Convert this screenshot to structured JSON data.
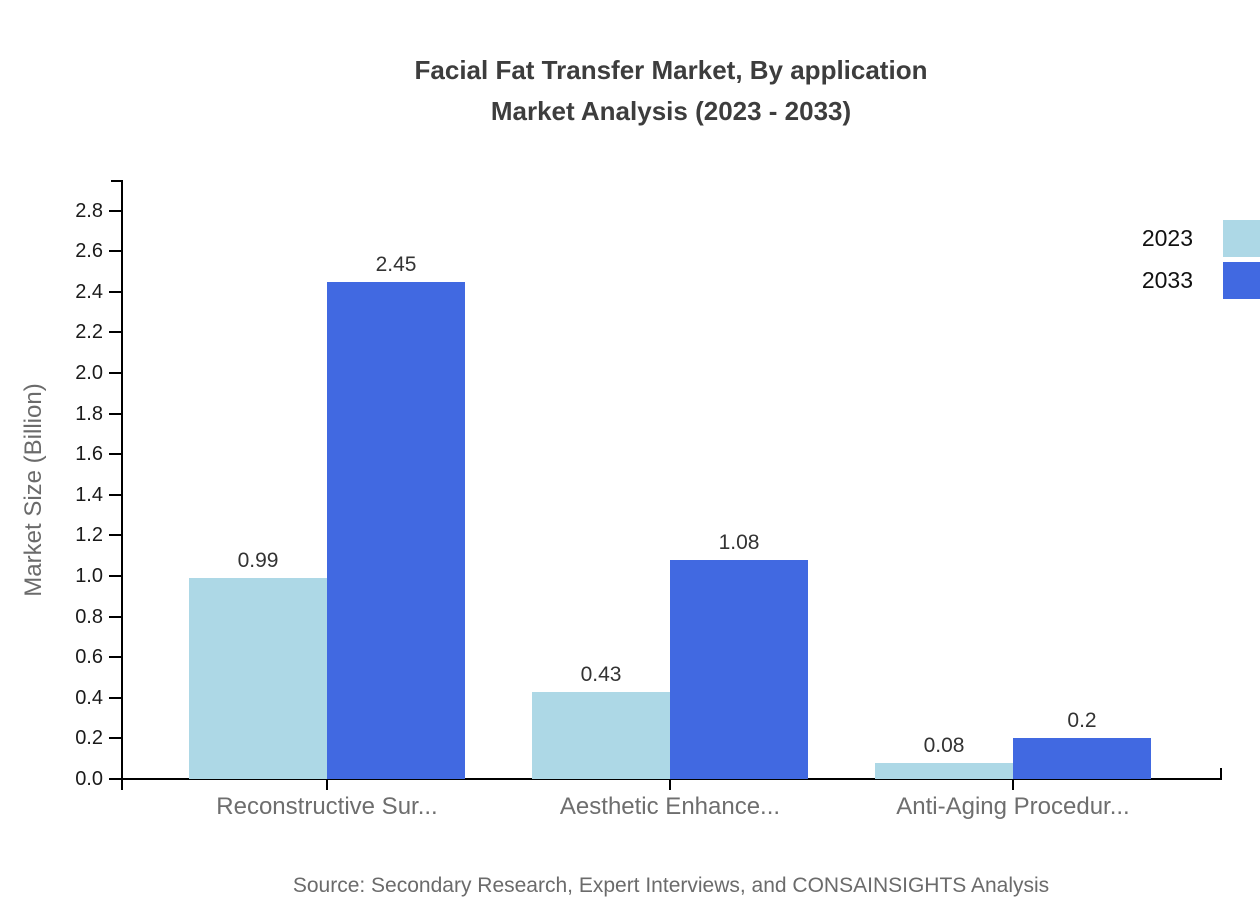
{
  "colors": {
    "axis": "#000000",
    "title_text": "#3d3d3d",
    "tick_text": "#1a1a1a",
    "value_text": "#333333",
    "muted_text": "#6b6b6b",
    "series_2023": "#ADD8E6",
    "series_2033": "#4169E1"
  },
  "source_note": "Source: Secondary Research, Expert Interviews, and CONSAINSIGHTS Analysis",
  "chart_data": {
    "type": "bar",
    "title": "Facial Fat Transfer Market, By application",
    "subtitle": "Market Analysis (2023 - 2033)",
    "categories": [
      "Reconstructive Sur...",
      "Aesthetic Enhance...",
      "Anti-Aging Procedur..."
    ],
    "series": [
      {
        "name": "2023",
        "color": "#ADD8E6",
        "values": [
          0.99,
          0.43,
          0.08
        ]
      },
      {
        "name": "2033",
        "color": "#4169E1",
        "values": [
          2.45,
          1.08,
          0.2
        ]
      }
    ],
    "value_labels": [
      "0.99",
      "2.45",
      "0.43",
      "1.08",
      "0.08",
      "0.2"
    ],
    "xlabel": "",
    "ylabel": "Market Size (Billion)",
    "ylim": [
      0.0,
      2.9
    ],
    "yticks": [
      0.0,
      0.2,
      0.4,
      0.6,
      0.8,
      1.0,
      1.2,
      1.4,
      1.6,
      1.8,
      2.0,
      2.2,
      2.4,
      2.6,
      2.8
    ],
    "grid": false,
    "legend_position": "top-right",
    "bar_value_labels_visible": true
  }
}
